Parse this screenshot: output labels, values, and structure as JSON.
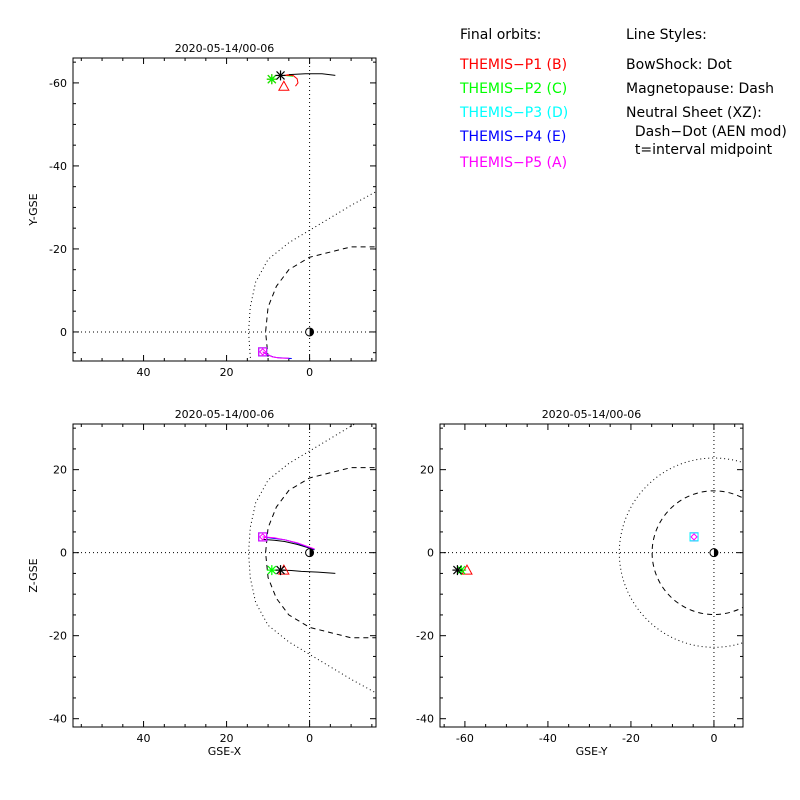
{
  "legend": {
    "orbits_header": "Final orbits:",
    "probes": [
      {
        "label": "THEMIS−P1 (B)",
        "color": "#ff0000"
      },
      {
        "label": "THEMIS−P2 (C)",
        "color": "#00ff00"
      },
      {
        "label": "THEMIS−P3 (D)",
        "color": "#00ffff"
      },
      {
        "label": "THEMIS−P4 (E)",
        "color": "#0000ff"
      },
      {
        "label": "THEMIS−P5 (A)",
        "color": "#ff00ff"
      }
    ],
    "styles_header": "Line Styles:",
    "styles": [
      "BowShock: Dot",
      "Magnetopause: Dash",
      "Neutral Sheet (XZ):",
      "  Dash−Dot (AEN mod)",
      "  t=interval midpoint"
    ]
  },
  "chart_data": [
    {
      "id": "xy",
      "type": "scatter",
      "title": "2020-05-14/00-06",
      "xlabel": "",
      "ylabel": "Y-GSE",
      "xlim": [
        57,
        -16
      ],
      "ylim": [
        7,
        -66
      ],
      "x_ticks": [
        40,
        20,
        0
      ],
      "y_ticks": [
        -60,
        -40,
        -20,
        0
      ],
      "axis_color": "#000000",
      "bow_shock": {
        "style": "dotted",
        "curve": [
          [
            -20,
            -36
          ],
          [
            -10,
            -30.5
          ],
          [
            0,
            -24.5
          ],
          [
            5,
            -21.5
          ],
          [
            10,
            -17.5
          ],
          [
            13,
            -12
          ],
          [
            14.3,
            -6
          ],
          [
            14.7,
            0
          ],
          [
            14.3,
            6
          ],
          [
            13,
            12
          ]
        ]
      },
      "magnetopause": {
        "style": "dashed",
        "curve": [
          [
            -20,
            -20.5
          ],
          [
            -10,
            -20.5
          ],
          [
            0,
            -18
          ],
          [
            5,
            -15
          ],
          [
            8,
            -11
          ],
          [
            10,
            -6
          ],
          [
            10.6,
            0
          ],
          [
            10,
            6
          ]
        ]
      },
      "earth": [
        0,
        0
      ],
      "orbit_black": [
        [
          5,
          -62
        ],
        [
          1,
          -62.2
        ],
        [
          -3,
          -62.2
        ],
        [
          -6.2,
          -61.8
        ]
      ],
      "orbit_red": [
        [
          3.4,
          -59.2
        ],
        [
          2.8,
          -60
        ],
        [
          3,
          -61
        ],
        [
          4,
          -61.8
        ],
        [
          6.2,
          -61.8
        ],
        [
          5,
          -62
        ]
      ],
      "orbit_green": [
        [
          4,
          -61.6
        ],
        [
          6.2,
          -61.8
        ]
      ],
      "orbit_blue": [
        [
          4.3,
          6.4
        ],
        [
          6,
          6.3
        ],
        [
          7.8,
          6.2
        ],
        [
          8.8,
          6
        ],
        [
          10.2,
          5.5
        ],
        [
          11.3,
          4.8
        ]
      ],
      "orbit_magenta": [
        [
          5,
          6.3
        ],
        [
          7,
          6.3
        ],
        [
          9,
          6
        ],
        [
          10.5,
          5.2
        ],
        [
          11.3,
          4.8
        ]
      ],
      "markers": [
        {
          "probe": "P1",
          "symbol": "triangle",
          "color": "#ff0000",
          "x": 6.2,
          "y": -59.2
        },
        {
          "probe": "P1",
          "symbol": "asterisk",
          "color": "#ff0000",
          "x": 9.1,
          "y": -60.9
        },
        {
          "probe": "P2",
          "symbol": "asterisk",
          "color": "#00ff00",
          "x": 9.1,
          "y": -60.9
        },
        {
          "probe": "P3",
          "symbol": "square",
          "color": "#00ffff",
          "x": 11.3,
          "y": 4.8
        },
        {
          "probe": "P4",
          "symbol": "square",
          "color": "#0000ff",
          "x": 11.3,
          "y": 4.8
        },
        {
          "probe": "P5",
          "symbol": "square",
          "color": "#ff00ff",
          "x": 11.3,
          "y": 4.8
        },
        {
          "probe": "P5",
          "symbol": "diamond",
          "color": "#ff00ff",
          "x": 11.3,
          "y": 4.8
        },
        {
          "probe": "ref",
          "symbol": "asterisk",
          "color": "#000000",
          "x": 7,
          "y": -61.8
        }
      ]
    },
    {
      "id": "xz",
      "type": "scatter",
      "title": "2020-05-14/00-06",
      "xlabel": "GSE-X",
      "ylabel": "Z-GSE",
      "xlim": [
        57,
        -16
      ],
      "ylim": [
        -42,
        31
      ],
      "x_ticks": [
        40,
        20,
        0
      ],
      "y_ticks": [
        -40,
        -20,
        0,
        20
      ],
      "axis_color": "#000000",
      "bow_shock": {
        "style": "dotted",
        "curve": [
          [
            -20,
            36
          ],
          [
            -10,
            30.5
          ],
          [
            0,
            24.5
          ],
          [
            5,
            21.5
          ],
          [
            10,
            17.5
          ],
          [
            13,
            12
          ],
          [
            14.3,
            6
          ],
          [
            14.7,
            0
          ],
          [
            14.3,
            -6
          ],
          [
            13,
            -12
          ],
          [
            10,
            -17.5
          ],
          [
            5,
            -21.5
          ],
          [
            0,
            -24.5
          ],
          [
            -10,
            -30.5
          ],
          [
            -20,
            -36
          ]
        ]
      },
      "magnetopause": {
        "style": "dashed",
        "curve": [
          [
            -20,
            20.5
          ],
          [
            -10,
            20.5
          ],
          [
            0,
            18
          ],
          [
            5,
            15
          ],
          [
            8,
            11
          ],
          [
            10,
            6
          ],
          [
            10.6,
            0
          ],
          [
            10,
            -6
          ],
          [
            8,
            -11
          ],
          [
            5,
            -15
          ],
          [
            0,
            -18
          ],
          [
            -10,
            -20.5
          ],
          [
            -20,
            -20.5
          ]
        ]
      },
      "earth": [
        0,
        0
      ],
      "orbit_black": [
        [
          -6.2,
          -5
        ],
        [
          -2,
          -4.7
        ],
        [
          2,
          -4.5
        ],
        [
          4.4,
          -4.3
        ],
        [
          7,
          -4.2
        ]
      ],
      "orbit_red": [
        [
          6.2,
          -4.2
        ],
        [
          7,
          -4.2
        ]
      ],
      "orbit_green": [
        [
          7,
          -4.2
        ],
        [
          9.1,
          -4.2
        ]
      ],
      "orbit_blue": [
        [
          -1.2,
          0.8
        ],
        [
          0,
          1.2
        ],
        [
          3,
          2.3
        ],
        [
          6,
          3.1
        ],
        [
          8.5,
          3.4
        ],
        [
          11.3,
          3.8
        ]
      ],
      "orbit_magenta": [
        [
          -1.2,
          0.9
        ],
        [
          0,
          1.3
        ],
        [
          3,
          2.4
        ],
        [
          6,
          3.1
        ],
        [
          8.5,
          3.6
        ],
        [
          11.3,
          3.8
        ]
      ],
      "orbit_black_neutral": [
        [
          -1.2,
          0.7
        ],
        [
          0,
          1.1
        ],
        [
          3,
          2.0
        ],
        [
          6,
          2.7
        ],
        [
          8.5,
          3.0
        ],
        [
          11.3,
          3.2
        ]
      ],
      "markers": [
        {
          "probe": "P1",
          "symbol": "triangle",
          "color": "#ff0000",
          "x": 6.2,
          "y": -4.2
        },
        {
          "probe": "P2",
          "symbol": "asterisk",
          "color": "#00ff00",
          "x": 9.1,
          "y": -4.2
        },
        {
          "probe": "P3",
          "symbol": "square",
          "color": "#00ffff",
          "x": 11.3,
          "y": 3.8
        },
        {
          "probe": "P4",
          "symbol": "square",
          "color": "#0000ff",
          "x": 11.3,
          "y": 3.8
        },
        {
          "probe": "P5",
          "symbol": "square",
          "color": "#ff00ff",
          "x": 11.3,
          "y": 3.8
        },
        {
          "probe": "P5",
          "symbol": "diamond",
          "color": "#ff00ff",
          "x": 11.3,
          "y": 3.8
        },
        {
          "probe": "ref",
          "symbol": "asterisk",
          "color": "#000000",
          "x": 7,
          "y": -4.2
        }
      ]
    },
    {
      "id": "yz",
      "type": "scatter",
      "title": "2020-05-14/00-06",
      "xlabel": "GSE-Y",
      "ylabel": "",
      "xlim": [
        -66,
        7
      ],
      "ylim": [
        -42,
        31
      ],
      "x_ticks": [
        -60,
        -40,
        -20,
        0
      ],
      "y_ticks": [
        -40,
        -20,
        0,
        20
      ],
      "axis_color": "#000000",
      "bow_shock_circle_r": 22.8,
      "magnetopause_circle_r": 14.9,
      "earth": [
        0,
        0
      ],
      "markers": [
        {
          "probe": "P1",
          "symbol": "triangle",
          "color": "#ff0000",
          "x": -59.5,
          "y": -4.2
        },
        {
          "probe": "P2",
          "symbol": "asterisk",
          "color": "#00ff00",
          "x": -60.9,
          "y": -4.2
        },
        {
          "probe": "P4",
          "symbol": "square",
          "color": "#0000ff",
          "x": -4.8,
          "y": 3.8
        },
        {
          "probe": "P5",
          "symbol": "square",
          "color": "#ff00ff",
          "x": -4.8,
          "y": 3.8
        },
        {
          "probe": "P3",
          "symbol": "square",
          "color": "#00ffff",
          "x": -4.8,
          "y": 3.8
        },
        {
          "probe": "P5",
          "symbol": "diamond",
          "color": "#ff00ff",
          "x": -4.8,
          "y": 3.8
        },
        {
          "probe": "ref",
          "symbol": "asterisk",
          "color": "#000000",
          "x": -61.8,
          "y": -4.2
        }
      ]
    }
  ]
}
